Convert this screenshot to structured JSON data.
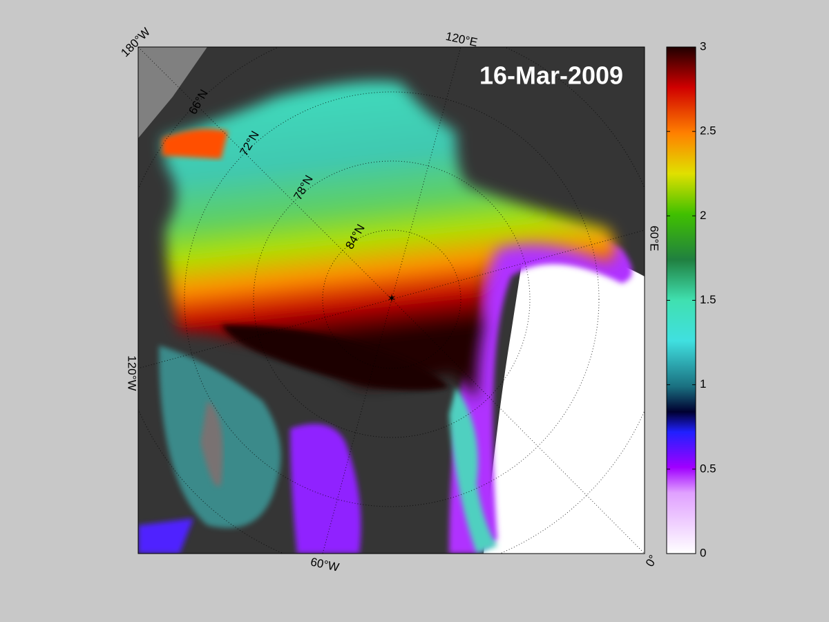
{
  "map": {
    "title": "16-Mar-2009",
    "longitude_labels": [
      "180°W",
      "120°E",
      "60°E",
      "0°",
      "60°W",
      "120°W"
    ],
    "latitude_labels": [
      "66°N",
      "72°N",
      "78°N",
      "84°N"
    ]
  },
  "colorbar": {
    "lim": [
      0,
      3
    ],
    "ticks": [
      0,
      0.5,
      1,
      1.5,
      2,
      2.5,
      3
    ]
  }
}
